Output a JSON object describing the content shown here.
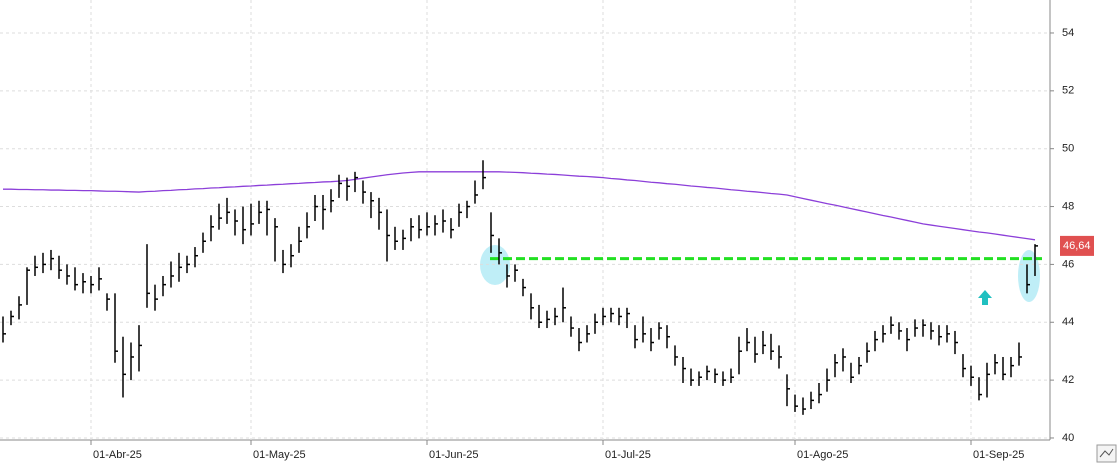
{
  "chart_data": {
    "type": "hlc",
    "categories": [
      null,
      null,
      null,
      null,
      null,
      null,
      null,
      null,
      null,
      null,
      null,
      "01-Abr-25",
      null,
      null,
      null,
      null,
      null,
      null,
      null,
      null,
      null,
      null,
      null,
      null,
      null,
      null,
      null,
      null,
      null,
      null,
      null,
      "01-May-25",
      null,
      null,
      null,
      null,
      null,
      null,
      null,
      null,
      null,
      null,
      null,
      null,
      null,
      null,
      null,
      null,
      null,
      null,
      null,
      null,
      null,
      "01-Jun-25",
      null,
      null,
      null,
      null,
      null,
      null,
      null,
      null,
      null,
      null,
      null,
      null,
      null,
      null,
      null,
      null,
      null,
      null,
      null,
      null,
      null,
      "01-Jul-25",
      null,
      null,
      null,
      null,
      null,
      null,
      null,
      null,
      null,
      null,
      null,
      null,
      null,
      null,
      null,
      null,
      null,
      null,
      null,
      null,
      null,
      null,
      null,
      "01-Ago-25",
      null,
      null,
      null,
      null,
      null,
      null,
      null,
      null,
      null,
      null,
      null,
      null,
      null,
      null,
      null,
      null,
      null,
      null,
      null,
      null,
      null,
      "01-Sep-25",
      null,
      null,
      null,
      null,
      null,
      null,
      null,
      null
    ],
    "close": [
      43.6,
      44.2,
      44.6,
      45.8,
      45.9,
      46.0,
      46.2,
      45.8,
      45.6,
      45.3,
      45.4,
      45.3,
      45.5,
      44.8,
      43.0,
      42.2,
      42.8,
      43.2,
      45.0,
      44.8,
      45.3,
      45.6,
      45.9,
      46.0,
      46.3,
      46.8,
      47.3,
      47.6,
      47.8,
      47.5,
      47.2,
      47.4,
      47.8,
      47.9,
      47.3,
      46.0,
      46.3,
      46.8,
      47.3,
      48.0,
      47.9,
      48.2,
      48.8,
      48.7,
      49.0,
      48.5,
      48.2,
      47.8,
      47.0,
      46.8,
      46.9,
      47.3,
      47.2,
      47.3,
      47.4,
      47.5,
      47.2,
      47.8,
      48.0,
      48.4,
      49.0,
      47.0,
      46.4,
      45.6,
      45.8,
      45.2,
      44.5,
      44.0,
      44.1,
      44.2,
      44.5,
      43.8,
      43.3,
      43.6,
      44.0,
      44.2,
      44.3,
      44.2,
      44.3,
      43.4,
      43.6,
      43.3,
      43.8,
      43.5,
      42.8,
      42.4,
      42.0,
      42.1,
      42.3,
      42.2,
      42.0,
      42.1,
      43.0,
      43.3,
      42.9,
      43.2,
      43.0,
      42.8,
      41.7,
      41.1,
      41.0,
      41.3,
      41.5,
      42.0,
      42.6,
      42.8,
      42.1,
      42.5,
      43.0,
      43.4,
      43.6,
      43.9,
      43.7,
      43.4,
      43.8,
      43.9,
      43.7,
      43.5,
      43.6,
      43.3,
      42.4,
      42.1,
      41.5,
      42.2,
      42.6,
      42.2,
      42.5,
      42.8,
      45.3,
      46.64
    ],
    "high": [
      44.2,
      44.4,
      44.9,
      45.9,
      46.3,
      46.4,
      46.5,
      46.3,
      46.0,
      45.9,
      45.7,
      45.6,
      45.9,
      45.0,
      45.0,
      43.5,
      43.3,
      43.9,
      46.7,
      45.3,
      45.6,
      46.1,
      46.4,
      46.3,
      46.6,
      47.1,
      47.7,
      48.1,
      48.3,
      47.9,
      48.0,
      48.1,
      48.2,
      48.2,
      47.6,
      46.5,
      46.7,
      47.3,
      47.8,
      48.4,
      48.4,
      48.6,
      49.1,
      49.0,
      49.2,
      48.9,
      48.5,
      48.3,
      47.9,
      47.3,
      47.2,
      47.6,
      47.7,
      47.8,
      47.7,
      47.9,
      47.6,
      48.1,
      48.2,
      48.9,
      49.6,
      47.8,
      46.9,
      46.0,
      46.0,
      45.5,
      45.0,
      44.6,
      44.4,
      44.5,
      45.2,
      44.2,
      43.8,
      43.9,
      44.3,
      44.5,
      44.5,
      44.5,
      44.5,
      43.9,
      44.2,
      43.8,
      44.0,
      43.9,
      43.2,
      42.8,
      42.4,
      42.3,
      42.5,
      42.4,
      42.3,
      42.4,
      43.5,
      43.8,
      43.5,
      43.7,
      43.6,
      43.2,
      42.2,
      41.5,
      41.4,
      41.6,
      41.9,
      42.4,
      42.9,
      43.1,
      42.6,
      42.8,
      43.3,
      43.7,
      43.9,
      44.2,
      44.0,
      43.8,
      44.1,
      44.1,
      44.0,
      43.9,
      43.9,
      43.7,
      42.9,
      42.5,
      42.1,
      42.6,
      42.9,
      42.8,
      42.8,
      43.3,
      46.0,
      46.7
    ],
    "low": [
      43.3,
      43.9,
      44.1,
      44.6,
      45.6,
      45.7,
      45.8,
      45.5,
      45.3,
      45.1,
      45.0,
      45.0,
      45.1,
      44.4,
      42.6,
      41.4,
      42.0,
      42.3,
      44.5,
      44.4,
      44.9,
      45.2,
      45.4,
      45.7,
      45.9,
      46.4,
      46.8,
      47.2,
      47.4,
      47.0,
      46.7,
      47.0,
      47.4,
      47.0,
      46.1,
      45.7,
      45.9,
      46.4,
      46.9,
      47.5,
      47.2,
      47.8,
      48.3,
      48.2,
      48.5,
      48.1,
      47.6,
      47.2,
      46.1,
      46.5,
      46.5,
      46.8,
      46.9,
      47.0,
      47.0,
      47.1,
      46.9,
      47.3,
      47.6,
      48.1,
      48.6,
      46.4,
      46.0,
      45.2,
      45.4,
      44.9,
      44.1,
      43.8,
      43.8,
      43.9,
      44.0,
      43.5,
      43.0,
      43.3,
      43.6,
      43.9,
      44.0,
      43.9,
      43.8,
      43.1,
      43.3,
      43.0,
      43.4,
      43.1,
      42.5,
      41.9,
      41.8,
      41.8,
      42.0,
      41.9,
      41.8,
      41.9,
      42.2,
      43.0,
      42.6,
      42.9,
      42.7,
      42.4,
      41.1,
      40.9,
      40.8,
      41.0,
      41.2,
      41.6,
      42.1,
      42.3,
      41.9,
      42.2,
      42.6,
      43.0,
      43.3,
      43.6,
      43.4,
      43.0,
      43.5,
      43.5,
      43.4,
      43.2,
      43.3,
      42.9,
      42.1,
      41.8,
      41.3,
      41.4,
      42.2,
      42.0,
      42.1,
      42.5,
      45.0,
      45.6
    ],
    "color": "#000000",
    "ma": {
      "color": "#8c3fd9",
      "values": [
        48.6,
        48.6,
        48.59,
        48.59,
        48.58,
        48.58,
        48.57,
        48.57,
        48.56,
        48.56,
        48.55,
        48.55,
        48.54,
        48.53,
        48.53,
        48.52,
        48.51,
        48.5,
        48.52,
        48.53,
        48.55,
        48.56,
        48.58,
        48.59,
        48.61,
        48.62,
        48.64,
        48.65,
        48.67,
        48.68,
        48.7,
        48.71,
        48.73,
        48.74,
        48.76,
        48.77,
        48.79,
        48.8,
        48.82,
        48.83,
        48.85,
        48.86,
        48.88,
        48.9,
        48.94,
        48.98,
        49.02,
        49.06,
        49.1,
        49.13,
        49.16,
        49.18,
        49.2,
        49.2,
        49.2,
        49.2,
        49.2,
        49.2,
        49.2,
        49.2,
        49.2,
        49.2,
        49.2,
        49.19,
        49.18,
        49.17,
        49.15,
        49.14,
        49.12,
        49.11,
        49.09,
        49.07,
        49.05,
        49.04,
        49.02,
        49.0,
        48.97,
        48.95,
        48.92,
        48.9,
        48.87,
        48.84,
        48.82,
        48.79,
        48.77,
        48.74,
        48.71,
        48.69,
        48.66,
        48.64,
        48.61,
        48.58,
        48.56,
        48.53,
        48.51,
        48.48,
        48.45,
        48.43,
        48.4,
        48.34,
        48.28,
        48.22,
        48.16,
        48.1,
        48.05,
        47.99,
        47.93,
        47.87,
        47.81,
        47.75,
        47.69,
        47.64,
        47.58,
        47.52,
        47.46,
        47.4,
        47.36,
        47.32,
        47.28,
        47.24,
        47.2,
        47.16,
        47.12,
        47.09,
        47.05,
        47.01,
        46.97,
        46.93,
        46.89,
        46.85
      ]
    },
    "level": {
      "value": 46.2,
      "color": "#22e022"
    },
    "last_price": {
      "value": 46.64,
      "label": "46,64",
      "color": "#e05050"
    },
    "ylim": [
      39.93,
      55.14
    ],
    "yticks": [
      40,
      42,
      44,
      46,
      48,
      50,
      52,
      54
    ],
    "grid": true
  }
}
